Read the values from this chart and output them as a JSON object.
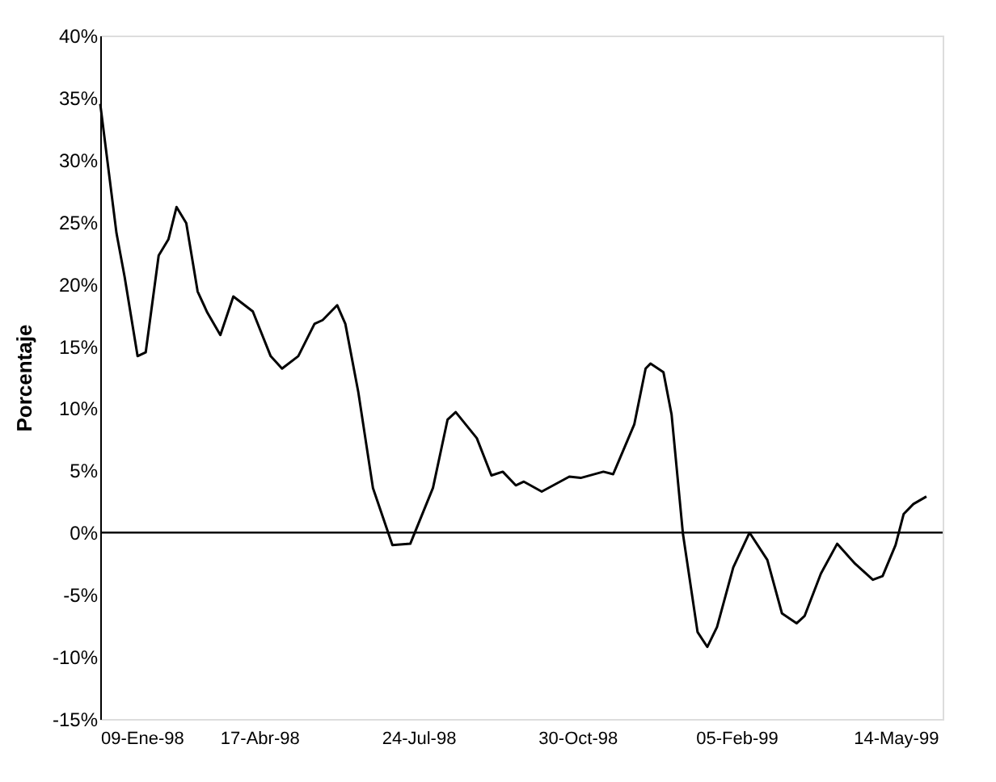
{
  "chart_data": {
    "type": "line",
    "ylabel": "Porcentaje",
    "x": [
      "1998-01-09",
      "1998-01-19",
      "1998-01-24",
      "1998-02-01",
      "1998-02-06",
      "1998-02-14",
      "1998-02-20",
      "1998-02-25",
      "1998-03-03",
      "1998-03-10",
      "1998-03-16",
      "1998-03-24",
      "1998-04-01",
      "1998-04-13",
      "1998-04-24",
      "1998-05-01",
      "1998-05-11",
      "1998-05-21",
      "1998-05-26",
      "1998-06-04",
      "1998-06-09",
      "1998-06-17",
      "1998-06-26",
      "1998-07-08",
      "1998-07-19",
      "1998-08-02",
      "1998-08-11",
      "1998-08-16",
      "1998-08-29",
      "1998-09-07",
      "1998-09-14",
      "1998-09-22",
      "1998-09-27",
      "1998-10-08",
      "1998-10-25",
      "1998-11-01",
      "1998-11-15",
      "1998-11-21",
      "1998-12-04",
      "1998-12-11",
      "1998-12-14",
      "1998-12-22",
      "1998-12-27",
      "1999-01-03",
      "1999-01-12",
      "1999-01-18",
      "1999-01-24",
      "1999-02-03",
      "1999-02-13",
      "1999-02-24",
      "1999-03-05",
      "1999-03-14",
      "1999-03-19",
      "1999-03-29",
      "1999-04-08",
      "1999-04-19",
      "1999-04-30",
      "1999-05-06",
      "1999-05-14",
      "1999-05-19",
      "1999-05-25",
      "1999-06-02"
    ],
    "series": [
      {
        "color": "#000000",
        "values": [
          34.5,
          24.1,
          20.6,
          14.2,
          14.5,
          22.3,
          23.6,
          26.2,
          24.9,
          19.4,
          17.7,
          15.9,
          19.0,
          17.8,
          14.2,
          13.2,
          14.2,
          16.8,
          17.1,
          18.3,
          16.8,
          11.3,
          3.6,
          -1.0,
          -0.9,
          3.6,
          9.1,
          9.7,
          7.6,
          4.6,
          4.9,
          3.8,
          4.1,
          3.3,
          4.5,
          4.4,
          4.9,
          4.7,
          8.7,
          13.2,
          13.6,
          12.9,
          9.5,
          -0.1,
          -8.0,
          -9.2,
          -7.6,
          -2.8,
          0.0,
          -2.2,
          -6.5,
          -7.3,
          -6.7,
          -3.3,
          -0.9,
          -2.5,
          -3.8,
          -3.5,
          -1.0,
          1.5,
          2.3,
          2.9
        ]
      }
    ],
    "xlim": [
      "1998-01-09",
      "1999-06-12"
    ],
    "xticks": [
      {
        "value": "1998-01-09",
        "label": "09-Ene-98"
      },
      {
        "value": "1998-04-17",
        "label": "17-Abr-98"
      },
      {
        "value": "1998-07-24",
        "label": "24-Jul-98"
      },
      {
        "value": "1998-10-30",
        "label": "30-Oct-98"
      },
      {
        "value": "1999-02-05",
        "label": "05-Feb-99"
      },
      {
        "value": "1999-05-14",
        "label": "14-May-99"
      }
    ],
    "ylim": [
      -15,
      40
    ],
    "yticks": [
      {
        "value": -15,
        "label": "-15%"
      },
      {
        "value": -10,
        "label": "-10%"
      },
      {
        "value": -5,
        "label": "-5%"
      },
      {
        "value": 0,
        "label": "0%"
      },
      {
        "value": 5,
        "label": "5%"
      },
      {
        "value": 10,
        "label": "10%"
      },
      {
        "value": 15,
        "label": "15%"
      },
      {
        "value": 20,
        "label": "20%"
      },
      {
        "value": 25,
        "label": "25%"
      },
      {
        "value": 30,
        "label": "30%"
      },
      {
        "value": 35,
        "label": "35%"
      },
      {
        "value": 40,
        "label": "40%"
      }
    ],
    "ref_lines": [
      {
        "axis": "y",
        "value": 0,
        "color": "#000000"
      }
    ],
    "grid": false,
    "marker": "none",
    "line_style": "solid"
  }
}
